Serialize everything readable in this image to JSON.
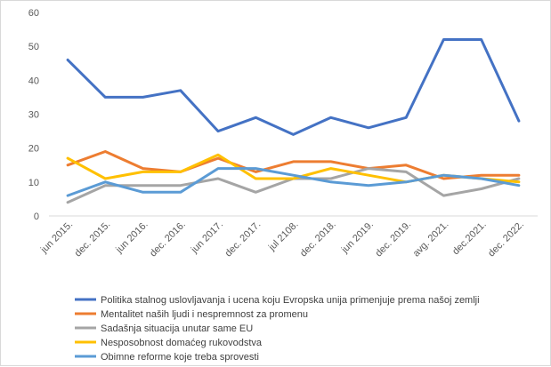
{
  "chart_data": {
    "type": "line",
    "categories": [
      "jun 2015.",
      "dec. 2015.",
      "jun 2016.",
      "dec. 2016.",
      "jun 2017.",
      "dec. 2017.",
      "jul 2108.",
      "dec. 2018.",
      "jun 2019.",
      "dec. 2019.",
      "avg. 2021.",
      "dec.2021.",
      "dec. 2022."
    ],
    "ylim": [
      0,
      60
    ],
    "yticks": [
      0,
      10,
      20,
      30,
      40,
      50,
      60
    ],
    "grid": false,
    "legend_position": "bottom",
    "series": [
      {
        "name": "Politika stalnog uslovljavanja i ucena koju Evropska unija primenjuje prema našoj zemlji",
        "color": "#4472C4",
        "values": [
          46,
          35,
          35,
          37,
          25,
          29,
          24,
          29,
          26,
          29,
          52,
          52,
          28
        ]
      },
      {
        "name": "Mentalitet naših ljudi i nespremnost za promenu",
        "color": "#ED7D31",
        "values": [
          15,
          19,
          14,
          13,
          17,
          13,
          16,
          16,
          14,
          15,
          11,
          12,
          12
        ]
      },
      {
        "name": "Sadašnja situacija unutar same EU",
        "color": "#A5A5A5",
        "values": [
          4,
          9,
          9,
          9,
          11,
          7,
          11,
          11,
          14,
          13,
          6,
          8,
          11
        ]
      },
      {
        "name": "Nesposobnost domaćeg rukovodstva",
        "color": "#FFC000",
        "values": [
          17,
          11,
          13,
          13,
          18,
          11,
          11,
          14,
          12,
          10,
          12,
          11,
          10
        ]
      },
      {
        "name": "Obimne reforme koje treba sprovesti",
        "color": "#5B9BD5",
        "values": [
          6,
          10,
          7,
          7,
          14,
          14,
          12,
          10,
          9,
          10,
          12,
          11,
          9
        ]
      }
    ]
  }
}
